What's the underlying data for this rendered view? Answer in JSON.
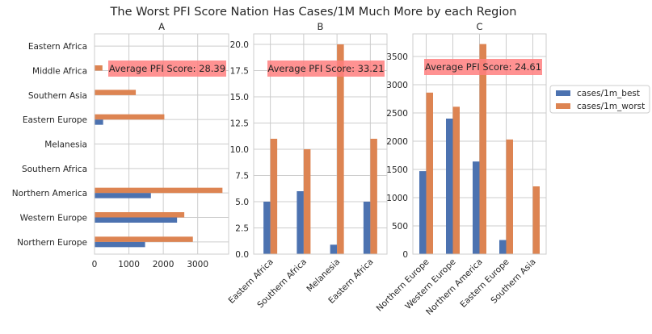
{
  "colors": {
    "best": "#4c72b0",
    "worst": "#dd8452",
    "annotation_box": "#ff7f7f",
    "grid": "#cccccc",
    "axes": "#cccccc",
    "text": "#262626"
  },
  "suptitle": "The Worst PFI Score Nation Has Cases/1M Much More by each Region",
  "legend": {
    "placement": "right",
    "entries": [
      {
        "series": "best",
        "label": "cases/1m_best"
      },
      {
        "series": "worst",
        "label": "cases/1m_worst"
      }
    ]
  },
  "chart_data": [
    {
      "id": "A",
      "type": "bar",
      "orientation": "horizontal",
      "title": "A",
      "categories": [
        "Northern Europe",
        "Western Europe",
        "Northern America",
        "Southern Africa",
        "Melanesia",
        "Eastern Europe",
        "Southern Asia",
        "Middle Africa",
        "Eastern Africa"
      ],
      "series": [
        {
          "key": "best",
          "values": [
            1470,
            2400,
            1640,
            0,
            0,
            250,
            0,
            0,
            0
          ]
        },
        {
          "key": "worst",
          "values": [
            2860,
            2610,
            3720,
            0,
            0,
            2030,
            1200,
            230,
            0
          ]
        }
      ],
      "xlim": [
        0,
        3900
      ],
      "xticks": [
        0,
        1000,
        2000,
        3000
      ],
      "xticklabels": [
        "0",
        "1000",
        "2000",
        "3000"
      ],
      "annotation": "Average PFI Score: 28.39",
      "grid": true
    },
    {
      "id": "B",
      "type": "bar",
      "orientation": "vertical",
      "title": "B",
      "categories": [
        "Eastern Africa",
        "Southern Africa",
        "Melanesia",
        "Eastern Africa"
      ],
      "series": [
        {
          "key": "best",
          "values": [
            5.0,
            6.0,
            0.9,
            5.0
          ]
        },
        {
          "key": "worst",
          "values": [
            11.0,
            10.0,
            20.0,
            11.0
          ]
        }
      ],
      "ylim": [
        0,
        21
      ],
      "yticks": [
        0,
        2.5,
        5,
        7.5,
        10,
        12.5,
        15,
        17.5,
        20
      ],
      "yticklabels": [
        "0.0",
        "2.5",
        "5.0",
        "7.5",
        "10.0",
        "12.5",
        "15.0",
        "17.5",
        "20.0"
      ],
      "annotation": "Average PFI Score: 33.21",
      "grid": true
    },
    {
      "id": "C",
      "type": "bar",
      "orientation": "vertical",
      "title": "C",
      "categories": [
        "Northern Europe",
        "Western Europe",
        "Northern America",
        "Eastern Europe",
        "Southern Asia"
      ],
      "series": [
        {
          "key": "best",
          "values": [
            1470,
            2400,
            1640,
            250,
            0
          ]
        },
        {
          "key": "worst",
          "values": [
            2860,
            2610,
            3720,
            2030,
            1200
          ]
        }
      ],
      "ylim": [
        0,
        3900
      ],
      "yticks": [
        0,
        500,
        1000,
        1500,
        2000,
        2500,
        3000,
        3500
      ],
      "yticklabels": [
        "0",
        "500",
        "1000",
        "1500",
        "2000",
        "2500",
        "3000",
        "3500"
      ],
      "annotation": "Average PFI Score: 24.61",
      "grid": true
    }
  ]
}
